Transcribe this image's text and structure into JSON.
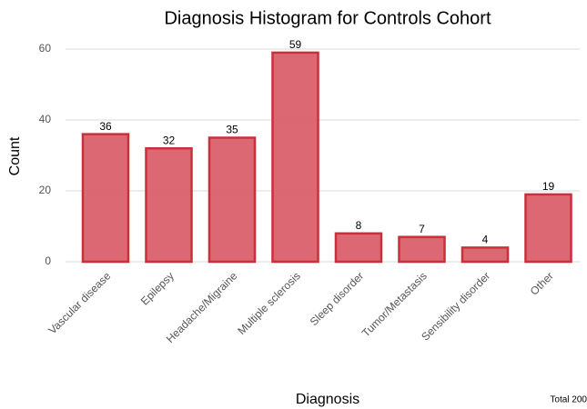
{
  "chart_data": {
    "type": "bar",
    "title": "Diagnosis Histogram for Controls Cohort",
    "x_label": "Diagnosis",
    "y_label": "Count",
    "annotation": "Total 200",
    "categories": [
      "Vascular disease",
      "Epilepsy",
      "Headache/Migraine",
      "Multiple sclerosis",
      "Sleep disorder",
      "Tumor/Metastasis",
      "Sensibility disorder",
      "Other"
    ],
    "values": [
      36,
      32,
      35,
      59,
      8,
      7,
      4,
      19
    ],
    "color": "#d9606a",
    "edgecolor": "#c9313a",
    "ylim": [
      0,
      60
    ],
    "yticks": [
      0,
      20,
      40,
      60
    ],
    "grid": true
  }
}
